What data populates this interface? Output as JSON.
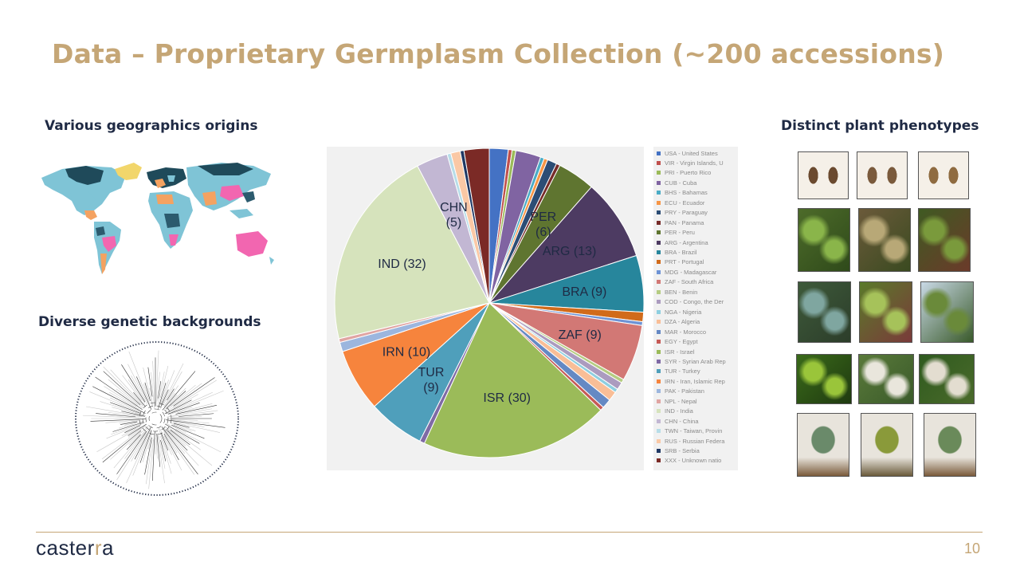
{
  "slide": {
    "title": "Data – Proprietary Germplasm Collection (~200 accessions)",
    "section_geo": "Various geographics origins",
    "section_genetic": "Diverse genetic backgrounds",
    "section_pheno": "Distinct plant phenotypes",
    "page_number": "10",
    "logo": {
      "pre": "caster",
      "dot": "r",
      "post": "a"
    }
  },
  "chart_data": {
    "type": "pie",
    "slices": [
      {
        "code": "USA",
        "value": 3,
        "color": "#4472c4"
      },
      {
        "code": "VIR",
        "value": 0.6,
        "color": "#c0504d"
      },
      {
        "code": "PRI",
        "value": 0.6,
        "color": "#9bbb59"
      },
      {
        "code": "CUB",
        "value": 4,
        "color": "#8064a2"
      },
      {
        "code": "BHS",
        "value": 0.6,
        "color": "#4bacc6"
      },
      {
        "code": "ECU",
        "value": 0.6,
        "color": "#f79646"
      },
      {
        "code": "PRY",
        "value": 1.5,
        "color": "#2c4d75"
      },
      {
        "code": "PAN",
        "value": 0.6,
        "color": "#772c2a"
      },
      {
        "code": "PER",
        "value": 6,
        "label": "PER\n(6)",
        "color": "#5f7530"
      },
      {
        "code": "ARG",
        "value": 13,
        "label": "ARG (13)",
        "color": "#4d3b62"
      },
      {
        "code": "BRA",
        "value": 9,
        "label": "BRA (9)",
        "color": "#27869c"
      },
      {
        "code": "PRT",
        "value": 1.5,
        "color": "#d16b1a"
      },
      {
        "code": "MDG",
        "value": 0.6,
        "color": "#6e93d5"
      },
      {
        "code": "ZAF",
        "value": 9,
        "label": "ZAF (9)",
        "color": "#d27875"
      },
      {
        "code": "BEN",
        "value": 0.6,
        "color": "#b5cc82"
      },
      {
        "code": "COD",
        "value": 1.2,
        "color": "#ab9bbf"
      },
      {
        "code": "NGA",
        "value": 0.6,
        "color": "#8ecfe0"
      },
      {
        "code": "DZA",
        "value": 1.5,
        "color": "#f9be97"
      },
      {
        "code": "MAR",
        "value": 1.5,
        "color": "#6589c4"
      },
      {
        "code": "EGY",
        "value": 0.6,
        "color": "#c65a56"
      },
      {
        "code": "ISR",
        "value": 30,
        "label": "ISR (30)",
        "color": "#9bbb59"
      },
      {
        "code": "SYR",
        "value": 0.8,
        "color": "#7f6aa5"
      },
      {
        "code": "TUR",
        "value": 9,
        "label": "TUR\n(9)",
        "color": "#4f9fbb"
      },
      {
        "code": "IRN",
        "value": 10,
        "label": "IRN (10)",
        "color": "#f6843d"
      },
      {
        "code": "PAK",
        "value": 1.5,
        "color": "#9cb6de"
      },
      {
        "code": "NPL",
        "value": 0.6,
        "color": "#e0a4a2"
      },
      {
        "code": "IND",
        "value": 32,
        "label": "IND (32)",
        "color": "#d6e3bc"
      },
      {
        "code": "CHN",
        "value": 5,
        "label": "CHN\n(5)",
        "color": "#c2b7d3"
      },
      {
        "code": "TWN",
        "value": 0.6,
        "color": "#b7dde8"
      },
      {
        "code": "RUS",
        "value": 1.5,
        "color": "#fac8a5"
      },
      {
        "code": "SRB",
        "value": 0.6,
        "color": "#1f3864"
      },
      {
        "code": "XXX",
        "value": 4,
        "color": "#7b2a26"
      }
    ],
    "legend": [
      "USA - United States",
      "VIR - Virgin Islands, U",
      "PRI - Puerto Rico",
      "CUB - Cuba",
      "BHS - Bahamas",
      "ECU - Ecuador",
      "PRY - Paraguay",
      "PAN - Panama",
      "PER - Peru",
      "ARG - Argentina",
      "BRA - Brazil",
      "PRT - Portugal",
      "MDG - Madagascar",
      "ZAF - South Africa",
      "BEN - Benin",
      "COD - Congo, the Der",
      "NGA - Nigeria",
      "DZA - Algeria",
      "MAR - Morocco",
      "EGY - Egypt",
      "ISR - Israel",
      "SYR - Syrian Arab Rep",
      "TUR - Turkey",
      "IRN - Iran, Islamic Rep",
      "PAK - Pakistan",
      "NPL - Nepal",
      "IND - India",
      "CHN - China",
      "TWN - Taiwan, Provin",
      "RUS - Russian Federa",
      "SRB - Serbia",
      "XXX - Unknown natio"
    ],
    "legend_position": "right"
  },
  "phenotype_images": [
    {
      "name": "seeds-photo",
      "kind": "seed",
      "colors": [
        "#f5f0e8",
        "#6b4a2f",
        "#d9c7a8"
      ]
    },
    {
      "name": "seeds-photo",
      "kind": "seed",
      "colors": [
        "#f5f0e8",
        "#7a5a3c",
        "#c9b28c"
      ]
    },
    {
      "name": "seeds-photo",
      "kind": "seed",
      "colors": [
        "#f5f0e8",
        "#8f6b40",
        "#d8c29a"
      ]
    },
    {
      "name": "stem-photo",
      "kind": "plant",
      "colors": [
        "#4d6b2a",
        "#8ab54a",
        "#2f4a1a"
      ]
    },
    {
      "name": "stem-photo",
      "kind": "plant",
      "colors": [
        "#6b5a3a",
        "#b8a877",
        "#3a4a20"
      ]
    },
    {
      "name": "stem-photo",
      "kind": "plant",
      "colors": [
        "#3f5a22",
        "#7a9a3c",
        "#6b3a2a"
      ]
    },
    {
      "name": "fruit-photo",
      "kind": "fruit",
      "colors": [
        "#3e5a3a",
        "#7fa6a0",
        "#2c3d2a"
      ]
    },
    {
      "name": "fruit-photo",
      "kind": "fruit",
      "colors": [
        "#5a7a2a",
        "#a6c25a",
        "#7a3a3a"
      ]
    },
    {
      "name": "fruit-photo",
      "kind": "fruit",
      "colors": [
        "#c9d9e6",
        "#6a8a3a",
        "#3a5a2a"
      ]
    },
    {
      "name": "leaf-photo",
      "kind": "leaf",
      "colors": [
        "#3a6a1a",
        "#9ac53a",
        "#1f3a10"
      ]
    },
    {
      "name": "leaf-photo",
      "kind": "leaf",
      "colors": [
        "#5a7a3a",
        "#e9e6dc",
        "#3a5a2a"
      ]
    },
    {
      "name": "leaf-photo",
      "kind": "leaf",
      "colors": [
        "#2f5a1f",
        "#e3ddd0",
        "#4a6a2a"
      ]
    },
    {
      "name": "plant-photo",
      "kind": "whole",
      "colors": [
        "#e8e4dc",
        "#6a8a6a",
        "#7a5a3a"
      ]
    },
    {
      "name": "plant-photo",
      "kind": "whole",
      "colors": [
        "#e8e4dc",
        "#8a9a3a",
        "#6a5a3a"
      ]
    },
    {
      "name": "plant-photo",
      "kind": "whole",
      "colors": [
        "#e8e4dc",
        "#6a8a5a",
        "#7a5a3a"
      ]
    }
  ],
  "colors": {
    "accent": "#c5a676",
    "navy": "#1f2a44"
  }
}
